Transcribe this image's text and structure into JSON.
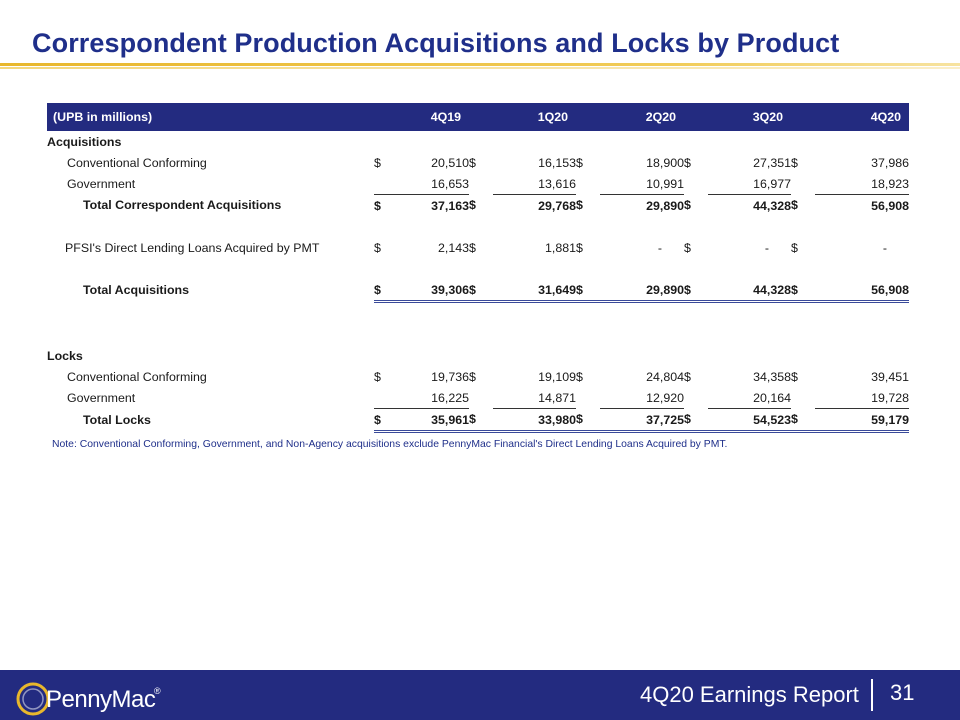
{
  "title": "Correspondent Production Acquisitions and Locks by Product",
  "table": {
    "header_label": "(UPB in millions)",
    "periods": [
      "4Q19",
      "1Q20",
      "2Q20",
      "3Q20",
      "4Q20"
    ],
    "currency_symbol": "$",
    "acquisitions_label": "Acquisitions",
    "conv_label": "Conventional Conforming",
    "conv_values": [
      "20,510",
      "16,153",
      "18,900",
      "27,351",
      "37,986"
    ],
    "gov_label": "Government",
    "gov_values": [
      "16,653",
      "13,616",
      "10,991",
      "16,977",
      "18,923"
    ],
    "total_corr_label": "Total Correspondent Acquisitions",
    "total_corr_values": [
      "37,163",
      "29,768",
      "29,890",
      "44,328",
      "56,908"
    ],
    "pfsi_label": "PFSI's Direct Lending Loans Acquired by PMT",
    "pfsi_values": [
      "2,143",
      "1,881",
      "-",
      "-",
      "-"
    ],
    "total_acq_label": "Total Acquisitions",
    "total_acq_values": [
      "39,306",
      "31,649",
      "29,890",
      "44,328",
      "56,908"
    ],
    "locks_label": "Locks",
    "locks_conv_label": "Conventional Conforming",
    "locks_conv_values": [
      "19,736",
      "19,109",
      "24,804",
      "34,358",
      "39,451"
    ],
    "locks_gov_label": "Government",
    "locks_gov_values": [
      "16,225",
      "14,871",
      "12,920",
      "20,164",
      "19,728"
    ],
    "total_locks_label": "Total Locks",
    "total_locks_values": [
      "35,961",
      "33,980",
      "37,725",
      "54,523",
      "59,179"
    ]
  },
  "note": "Note: Conventional Conforming, Government, and Non-Agency acquisitions exclude PennyMac Financial's Direct Lending Loans Acquired by PMT.",
  "footer": {
    "logo_text": "PennyMac",
    "logo_reg": "®",
    "report": "4Q20 Earnings Report",
    "page_number": "31"
  },
  "colors": {
    "navy": "#232b80",
    "title": "#1f2f8a",
    "gold": "#e8b72c"
  }
}
